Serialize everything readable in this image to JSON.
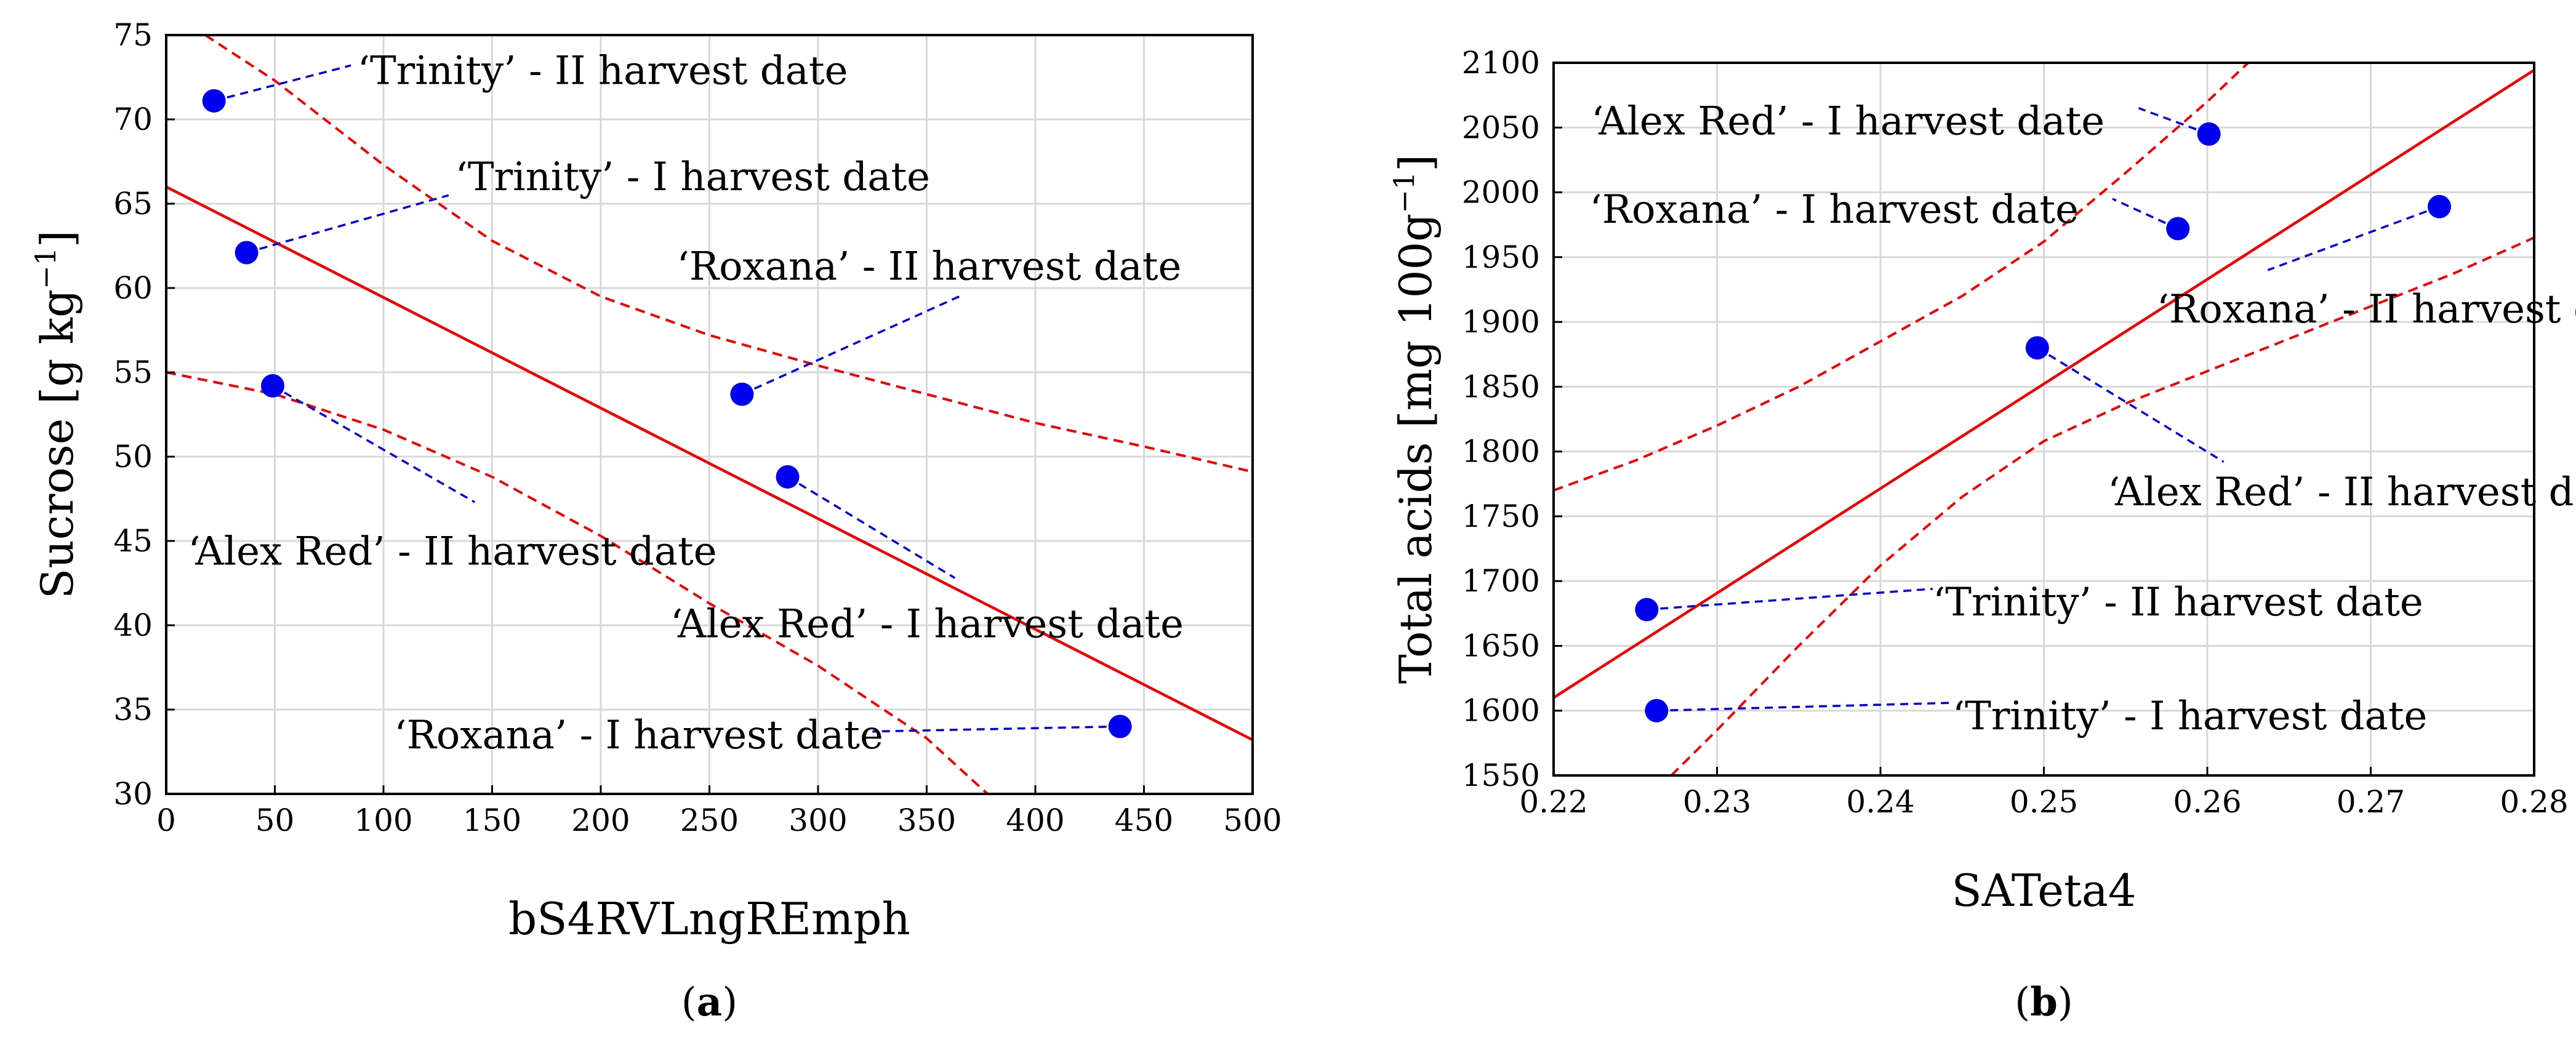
{
  "chart_data": [
    {
      "type": "scatter",
      "panel_label": "(a)",
      "panel_letter": "a",
      "xlabel": "bS4RVLngREmph",
      "ylabel": "Sucrose [g kg",
      "ylabel_sup": "−1",
      "ylabel_close": "]",
      "xlim": [
        0,
        500
      ],
      "ylim": [
        30,
        75
      ],
      "xticks": [
        0,
        50,
        100,
        150,
        200,
        250,
        300,
        350,
        400,
        450,
        500
      ],
      "yticks": [
        30,
        35,
        40,
        45,
        50,
        55,
        60,
        65,
        70,
        75
      ],
      "fit_line": [
        [
          0,
          66
        ],
        [
          500,
          33.2
        ]
      ],
      "ci_upper": [
        [
          18,
          75
        ],
        [
          50,
          72.3
        ],
        [
          100,
          67.3
        ],
        [
          150,
          62.8
        ],
        [
          200,
          59.5
        ],
        [
          250,
          57.2
        ],
        [
          300,
          55.4
        ],
        [
          350,
          53.7
        ],
        [
          400,
          52.0
        ],
        [
          450,
          50.6
        ],
        [
          500,
          49.1
        ]
      ],
      "ci_lower": [
        [
          0,
          55
        ],
        [
          50,
          53.7
        ],
        [
          100,
          51.6
        ],
        [
          150,
          48.8
        ],
        [
          200,
          45.3
        ],
        [
          250,
          41.3
        ],
        [
          300,
          37.6
        ],
        [
          350,
          33.3
        ],
        [
          378,
          30
        ]
      ],
      "points": [
        {
          "label": "‘Trinity’ - II harvest date",
          "x": 22,
          "y": 71.1,
          "label_x": 88,
          "label_y": 72.9,
          "anchor": "start",
          "leader_end": [
            85,
            73.2
          ]
        },
        {
          "label": "‘Trinity’ - I harvest date",
          "x": 37,
          "y": 62.1,
          "label_x": 133,
          "label_y": 66.6,
          "anchor": "start",
          "leader_end": [
            130,
            65.5
          ]
        },
        {
          "label": "‘Alex Red’ - II harvest date",
          "x": 49,
          "y": 54.2,
          "label_x": 10,
          "label_y": 44.4,
          "anchor": "start",
          "leader_end": [
            142,
            47.3
          ]
        },
        {
          "label": "‘Roxana’ - II harvest date",
          "x": 265,
          "y": 53.7,
          "label_x": 235,
          "label_y": 61.3,
          "anchor": "start",
          "leader_end": [
            365,
            59.5
          ]
        },
        {
          "label": "‘Alex Red’ - I harvest date",
          "x": 286,
          "y": 48.8,
          "label_x": 232,
          "label_y": 40.1,
          "anchor": "start",
          "leader_end": [
            363,
            42.8
          ]
        },
        {
          "label": "‘Roxana’ - I harvest date",
          "x": 439,
          "y": 34.0,
          "label_x": 330,
          "label_y": 33.5,
          "anchor": "end",
          "leader_end": [
            325,
            33.7
          ]
        }
      ]
    },
    {
      "type": "scatter",
      "panel_label": "(b)",
      "panel_letter": "b",
      "xlabel": "SATeta4",
      "ylabel": "Total acids [mg 100g",
      "ylabel_sup": "−1",
      "ylabel_close": "]",
      "xlim": [
        0.22,
        0.28
      ],
      "ylim": [
        1550,
        2100
      ],
      "xticks": [
        0.22,
        0.23,
        0.24,
        0.25,
        0.26,
        0.27,
        0.28
      ],
      "yticks": [
        1550,
        1600,
        1650,
        1700,
        1750,
        1800,
        1850,
        1900,
        1950,
        2000,
        2050,
        2100
      ],
      "fit_line": [
        [
          0.22,
          1610
        ],
        [
          0.2807,
          2100
        ]
      ],
      "ci_upper": [
        [
          0.22,
          1770
        ],
        [
          0.225,
          1793
        ],
        [
          0.23,
          1820
        ],
        [
          0.235,
          1850
        ],
        [
          0.24,
          1885
        ],
        [
          0.245,
          1920
        ],
        [
          0.25,
          1962
        ],
        [
          0.255,
          2015
        ],
        [
          0.26,
          2070
        ],
        [
          0.2625,
          2100
        ]
      ],
      "ci_lower": [
        [
          0.2272,
          1550
        ],
        [
          0.23,
          1585
        ],
        [
          0.235,
          1650
        ],
        [
          0.24,
          1712
        ],
        [
          0.245,
          1765
        ],
        [
          0.25,
          1808
        ],
        [
          0.255,
          1837
        ],
        [
          0.26,
          1862
        ],
        [
          0.265,
          1887
        ],
        [
          0.27,
          1912
        ],
        [
          0.275,
          1937
        ],
        [
          0.28,
          1965
        ]
      ],
      "points": [
        {
          "label": "‘Alex Red’ - I harvest date",
          "x": 0.2601,
          "y": 2045,
          "label_x": 0.2223,
          "label_y": 2055,
          "anchor": "start",
          "leader_end": [
            0.2558,
            2065
          ]
        },
        {
          "label": "‘Roxana’ - I harvest date",
          "x": 0.2582,
          "y": 1972,
          "label_x": 0.2222,
          "label_y": 1987,
          "anchor": "start",
          "leader_end": [
            0.2542,
            1995
          ]
        },
        {
          "label": "‘Roxana’ - II harvest date",
          "x": 0.2742,
          "y": 1989,
          "label_x": 0.2569,
          "label_y": 1910,
          "anchor": "start",
          "leader_end": [
            0.2637,
            1940
          ]
        },
        {
          "label": "‘Alex Red’ - II harvest date",
          "x": 0.2496,
          "y": 1880,
          "label_x": 0.2539,
          "label_y": 1769,
          "anchor": "start",
          "leader_end": [
            0.261,
            1792
          ]
        },
        {
          "label": "‘Trinity’ - II harvest date",
          "x": 0.2257,
          "y": 1678,
          "label_x": 0.2432,
          "label_y": 1684,
          "anchor": "start",
          "leader_end": [
            0.2432,
            1694
          ]
        },
        {
          "label": "‘Trinity’ - I harvest date",
          "x": 0.2263,
          "y": 1600,
          "label_x": 0.2444,
          "label_y": 1596,
          "anchor": "start",
          "leader_end": [
            0.2443,
            1606
          ]
        }
      ]
    }
  ]
}
